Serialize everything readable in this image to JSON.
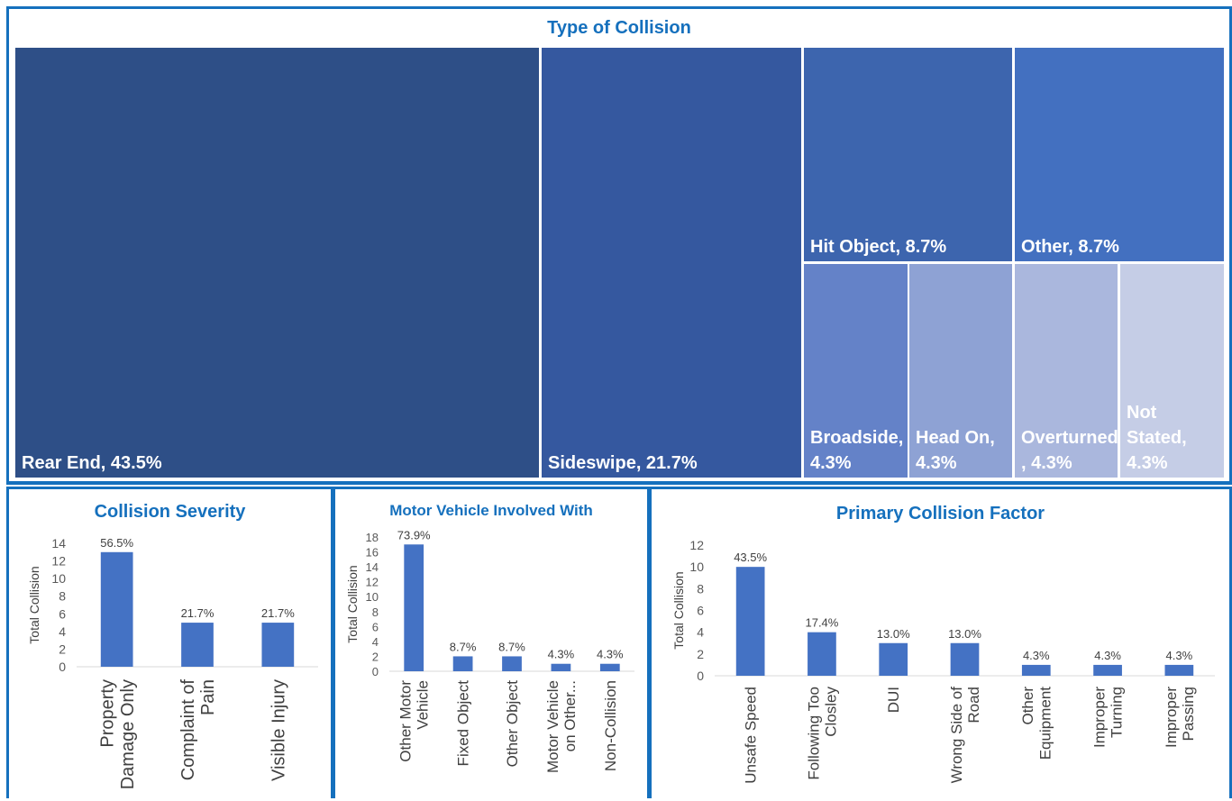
{
  "chart_data": [
    {
      "type": "treemap",
      "title": "Type of Collision",
      "items": [
        {
          "label": "Rear End, 43.5%",
          "name": "Rear End",
          "percent": 43.5,
          "color": "#2e4f87"
        },
        {
          "label": "Sideswipe, 21.7%",
          "name": "Sideswipe",
          "percent": 21.7,
          "color": "#35589f"
        },
        {
          "label": "Hit Object, 8.7%",
          "name": "Hit Object",
          "percent": 8.7,
          "color": "#3d65ae"
        },
        {
          "label": "Other, 8.7%",
          "name": "Other",
          "percent": 8.7,
          "color": "#4370c0"
        },
        {
          "label": "Broadside, 4.3%",
          "name": "Broadside",
          "percent": 4.3,
          "color": "#6482c8"
        },
        {
          "label": "Head On, 4.3%",
          "name": "Head On",
          "percent": 4.3,
          "color": "#8ea2d4"
        },
        {
          "label": "Overturned, 4.3%",
          "name": "Overturned",
          "percent": 4.3,
          "color": "#aab7dd"
        },
        {
          "label": "Not Stated, 4.3%",
          "name": "Not Stated",
          "percent": 4.3,
          "color": "#c5cde6"
        }
      ]
    },
    {
      "type": "bar",
      "title": "Collision Severity",
      "ylabel": "Total Collision",
      "xlabel": "",
      "ylim": [
        0,
        14
      ],
      "ytick_step": 2,
      "categories": [
        "Property Damage Only",
        "Complaint of Pain",
        "Visible Injury"
      ],
      "category_lines": [
        [
          "Property",
          "Damage Only"
        ],
        [
          "Complaint of",
          "Pain"
        ],
        [
          "Visible Injury"
        ]
      ],
      "values": [
        13,
        5,
        5
      ],
      "data_labels": [
        "56.5%",
        "21.7%",
        "21.7%"
      ],
      "bar_color": "#4472c4"
    },
    {
      "type": "bar",
      "title": "Motor Vehicle Involved With",
      "ylabel": "Total Collision",
      "xlabel": "",
      "ylim": [
        0,
        18
      ],
      "ytick_step": 2,
      "categories": [
        "Other Motor Vehicle",
        "Fixed Object",
        "Other Object",
        "Motor Vehicle on Other...",
        "Non-Collision"
      ],
      "category_lines": [
        [
          "Other Motor",
          "Vehicle"
        ],
        [
          "Fixed Object"
        ],
        [
          "Other Object"
        ],
        [
          "Motor Vehicle",
          "on Other..."
        ],
        [
          "Non-Collision"
        ]
      ],
      "values": [
        17,
        2,
        2,
        1,
        1
      ],
      "data_labels": [
        "73.9%",
        "8.7%",
        "8.7%",
        "4.3%",
        "4.3%"
      ],
      "bar_color": "#4472c4"
    },
    {
      "type": "bar",
      "title": "Primary Collision Factor",
      "ylabel": "Total Collision",
      "xlabel": "",
      "ylim": [
        0,
        12
      ],
      "ytick_step": 2,
      "categories": [
        "Unsafe Speed",
        "Following Too Closley",
        "DUI",
        "Wrong Side of Road",
        "Other Equipment",
        "Improper Turning",
        "Improper Passing"
      ],
      "category_lines": [
        [
          "Unsafe Speed"
        ],
        [
          "Following Too",
          "Closley"
        ],
        [
          "DUI"
        ],
        [
          "Wrong Side of",
          "Road"
        ],
        [
          "Other",
          "Equipment"
        ],
        [
          "Improper",
          "Turning"
        ],
        [
          "Improper",
          "Passing"
        ]
      ],
      "values": [
        10,
        4,
        3,
        3,
        1,
        1,
        1
      ],
      "data_labels": [
        "43.5%",
        "17.4%",
        "13.0%",
        "13.0%",
        "4.3%",
        "4.3%",
        "4.3%"
      ],
      "bar_color": "#4472c4"
    }
  ]
}
